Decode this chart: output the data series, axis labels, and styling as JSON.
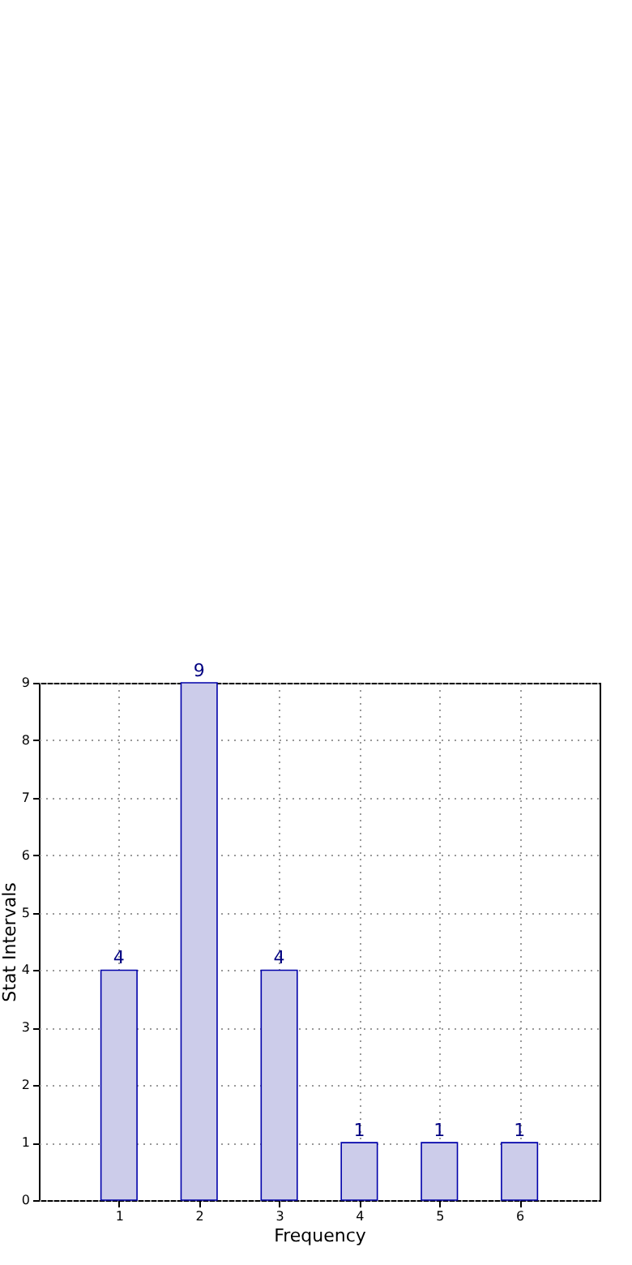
{
  "chart_data": {
    "type": "bar",
    "xlabel": "Frequency",
    "ylabel": "Stat Intervals",
    "x": [
      1,
      2,
      3,
      4,
      5,
      6
    ],
    "values": [
      4,
      9,
      4,
      1,
      1,
      1
    ],
    "color": "#ccccea",
    "xlim": [
      0,
      7
    ],
    "xticks": [
      1,
      2,
      3,
      4,
      5,
      6
    ],
    "ylim": [
      0,
      9
    ],
    "yticks": [
      0,
      1,
      2,
      3,
      4,
      5,
      6,
      7,
      8,
      9
    ],
    "grid": true,
    "data_labels": true
  }
}
